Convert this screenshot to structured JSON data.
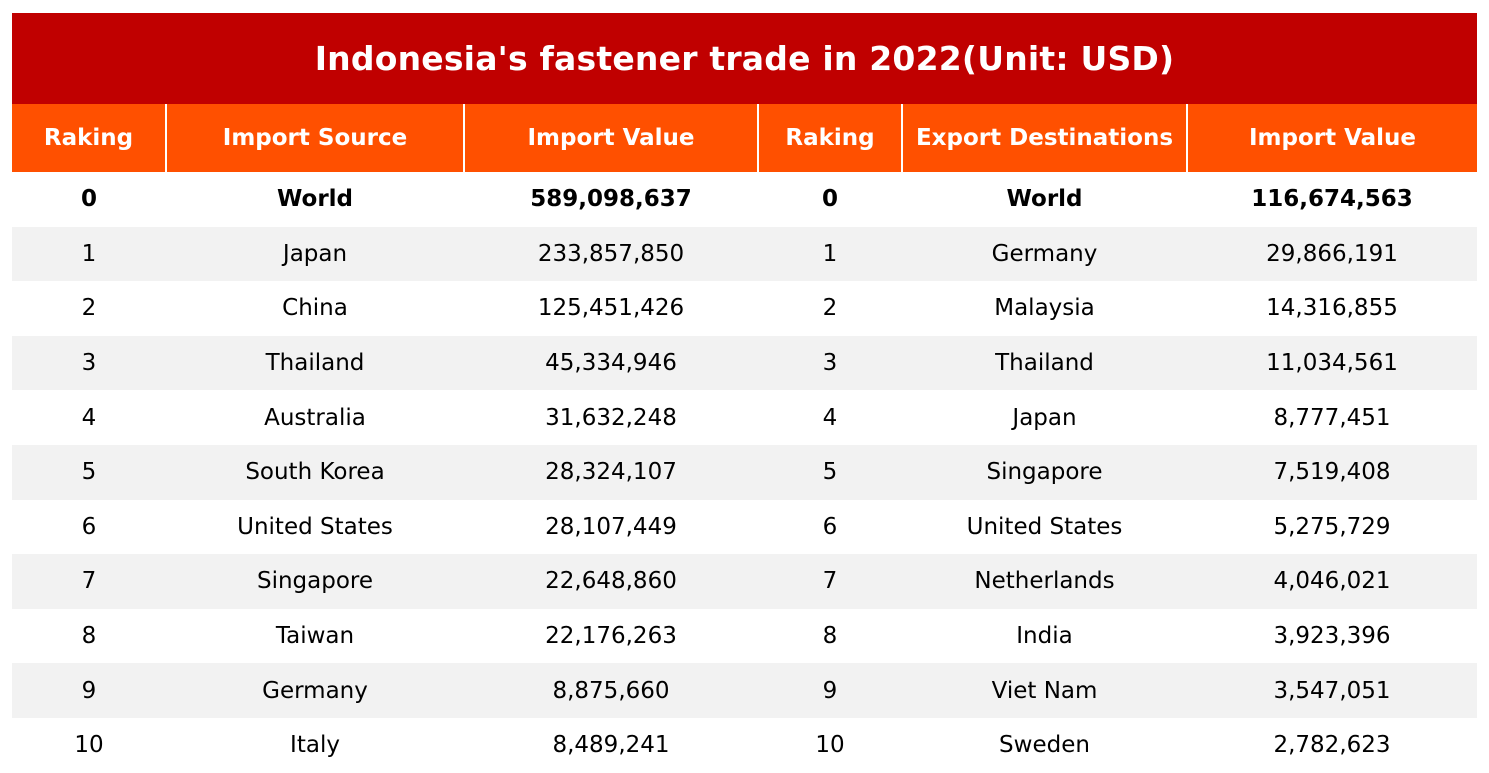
{
  "chart_data": {
    "type": "table",
    "title": "Indonesia's fastener trade in 2022(Unit: USD)",
    "columns": [
      "Raking",
      "Import Source",
      "Import Value",
      "Raking",
      "Export Destinations",
      "Import Value"
    ],
    "rows": [
      [
        "0",
        "World",
        "589,098,637",
        "0",
        "World",
        "116,674,563"
      ],
      [
        "1",
        "Japan",
        "233,857,850",
        "1",
        "Germany",
        "29,866,191"
      ],
      [
        "2",
        "China",
        "125,451,426",
        "2",
        "Malaysia",
        "14,316,855"
      ],
      [
        "3",
        "Thailand",
        "45,334,946",
        "3",
        "Thailand",
        "11,034,561"
      ],
      [
        "4",
        "Australia",
        "31,632,248",
        "4",
        "Japan",
        "8,777,451"
      ],
      [
        "5",
        "South Korea",
        "28,324,107",
        "5",
        "Singapore",
        "7,519,408"
      ],
      [
        "6",
        "United States",
        "28,107,449",
        "6",
        "United States",
        "5,275,729"
      ],
      [
        "7",
        "Singapore",
        "22,648,860",
        "7",
        "Netherlands",
        "4,046,021"
      ],
      [
        "8",
        "Taiwan",
        "22,176,263",
        "8",
        "India",
        "3,923,396"
      ],
      [
        "9",
        "Germany",
        "8,875,660",
        "9",
        "Viet Nam",
        "3,547,051"
      ],
      [
        "10",
        "Italy",
        "8,489,241",
        "10",
        "Sweden",
        "2,782,623"
      ]
    ],
    "bold_rows": [
      0
    ],
    "colors": {
      "title_bg": "#c00000",
      "header_bg": "#ff5000",
      "stripe": "#f2f2f2"
    }
  }
}
